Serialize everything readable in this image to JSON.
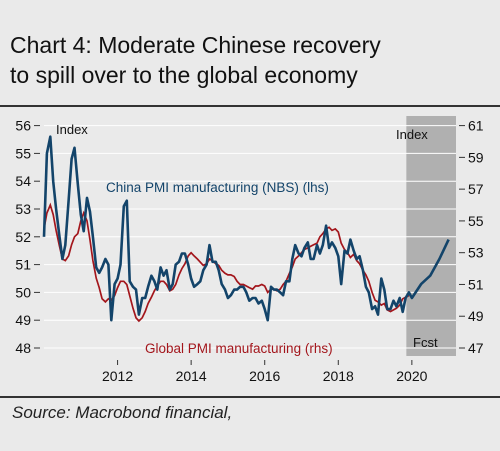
{
  "title_line1": "Chart 4: Moderate Chinese recovery",
  "title_line2": "to spill over to the global economy",
  "source": "Source: Macrobond financial,",
  "chart_data": {
    "type": "line",
    "left_unit_label": "Index",
    "right_unit_label": "Index",
    "forecast_label": "Fcst",
    "forecast_start": 2019.85,
    "left_axis": {
      "ticks": [
        48,
        49,
        50,
        51,
        52,
        53,
        54,
        55,
        56
      ],
      "range": [
        48,
        56
      ]
    },
    "right_axis": {
      "ticks": [
        47,
        49,
        51,
        53,
        55,
        57,
        59,
        61
      ],
      "range": [
        47,
        61.2
      ]
    },
    "x_axis": {
      "ticks": [
        2012,
        2014,
        2016,
        2018,
        2020
      ],
      "range": [
        2010.0,
        2021.2
      ]
    },
    "colors": {
      "china": "#13446a",
      "global": "#a3161c",
      "forecast_band": "#b0b0b0",
      "grid": "#ffffff"
    },
    "series": [
      {
        "name": "China PMI manufacturing (NBS) (lhs)",
        "axis": "left",
        "x": [
          2010.0,
          2010.08,
          2010.17,
          2010.25,
          2010.33,
          2010.42,
          2010.5,
          2010.58,
          2010.67,
          2010.75,
          2010.83,
          2010.92,
          2011.0,
          2011.08,
          2011.17,
          2011.25,
          2011.33,
          2011.42,
          2011.5,
          2011.58,
          2011.67,
          2011.75,
          2011.83,
          2011.92,
          2012.0,
          2012.08,
          2012.17,
          2012.25,
          2012.33,
          2012.42,
          2012.5,
          2012.58,
          2012.67,
          2012.75,
          2012.83,
          2012.92,
          2013.0,
          2013.08,
          2013.17,
          2013.25,
          2013.33,
          2013.42,
          2013.5,
          2013.58,
          2013.67,
          2013.75,
          2013.83,
          2013.92,
          2014.0,
          2014.08,
          2014.17,
          2014.25,
          2014.33,
          2014.42,
          2014.5,
          2014.58,
          2014.67,
          2014.75,
          2014.83,
          2014.92,
          2015.0,
          2015.08,
          2015.17,
          2015.25,
          2015.33,
          2015.42,
          2015.5,
          2015.58,
          2015.67,
          2015.75,
          2015.83,
          2015.92,
          2016.0,
          2016.08,
          2016.17,
          2016.25,
          2016.33,
          2016.42,
          2016.5,
          2016.58,
          2016.67,
          2016.75,
          2016.83,
          2016.92,
          2017.0,
          2017.08,
          2017.17,
          2017.25,
          2017.33,
          2017.42,
          2017.5,
          2017.58,
          2017.67,
          2017.75,
          2017.83,
          2017.92,
          2018.0,
          2018.08,
          2018.17,
          2018.25,
          2018.33,
          2018.42,
          2018.5,
          2018.58,
          2018.67,
          2018.75,
          2018.83,
          2018.92,
          2019.0,
          2019.08,
          2019.17,
          2019.25,
          2019.33,
          2019.42,
          2019.5,
          2019.58,
          2019.67,
          2019.75,
          2019.83,
          2019.92,
          2020.0,
          2020.25,
          2020.5,
          2020.75,
          2021.0
        ],
        "values": [
          52.0,
          55.0,
          55.6,
          54.0,
          53.0,
          52.0,
          51.2,
          51.7,
          53.3,
          54.8,
          55.2,
          53.9,
          52.8,
          52.2,
          53.4,
          52.9,
          52.0,
          50.9,
          50.7,
          50.9,
          51.2,
          51.0,
          49.0,
          50.3,
          50.5,
          51.0,
          53.1,
          53.3,
          50.4,
          50.2,
          50.1,
          49.2,
          49.8,
          49.8,
          50.2,
          50.6,
          50.4,
          50.1,
          50.9,
          50.6,
          50.8,
          50.1,
          50.3,
          51.0,
          51.1,
          51.4,
          51.4,
          51.0,
          50.5,
          50.2,
          50.3,
          50.4,
          50.8,
          51.0,
          51.7,
          51.1,
          51.1,
          50.8,
          50.3,
          50.1,
          49.8,
          49.9,
          50.1,
          50.1,
          50.2,
          50.2,
          50.0,
          49.7,
          49.8,
          49.8,
          49.6,
          49.7,
          49.4,
          49.0,
          50.2,
          50.1,
          50.1,
          50.0,
          49.9,
          50.4,
          50.4,
          51.2,
          51.7,
          51.4,
          51.3,
          51.6,
          51.8,
          51.2,
          51.2,
          51.7,
          51.4,
          51.7,
          52.4,
          51.6,
          51.8,
          51.6,
          51.3,
          50.3,
          51.5,
          51.4,
          51.9,
          51.5,
          51.2,
          51.3,
          50.8,
          50.2,
          50.0,
          49.4,
          49.5,
          49.2,
          50.5,
          50.1,
          49.4,
          49.4,
          49.7,
          49.5,
          49.8,
          49.3,
          49.8,
          50.0,
          49.8,
          50.3,
          50.6,
          51.2,
          51.9
        ]
      },
      {
        "name": "Global PMI manufacturing (rhs)",
        "axis": "right",
        "x": [
          2010.0,
          2010.08,
          2010.17,
          2010.25,
          2010.33,
          2010.42,
          2010.5,
          2010.58,
          2010.67,
          2010.75,
          2010.83,
          2010.92,
          2011.0,
          2011.08,
          2011.17,
          2011.25,
          2011.33,
          2011.42,
          2011.5,
          2011.58,
          2011.67,
          2011.75,
          2011.83,
          2011.92,
          2012.0,
          2012.08,
          2012.17,
          2012.25,
          2012.33,
          2012.42,
          2012.5,
          2012.58,
          2012.67,
          2012.75,
          2012.83,
          2012.92,
          2013.0,
          2013.08,
          2013.17,
          2013.25,
          2013.33,
          2013.42,
          2013.5,
          2013.58,
          2013.67,
          2013.75,
          2013.83,
          2013.92,
          2014.0,
          2014.08,
          2014.17,
          2014.25,
          2014.33,
          2014.42,
          2014.5,
          2014.58,
          2014.67,
          2014.75,
          2014.83,
          2014.92,
          2015.0,
          2015.08,
          2015.17,
          2015.25,
          2015.33,
          2015.42,
          2015.5,
          2015.58,
          2015.67,
          2015.75,
          2015.83,
          2015.92,
          2016.0,
          2016.08,
          2016.17,
          2016.25,
          2016.33,
          2016.42,
          2016.5,
          2016.58,
          2016.67,
          2016.75,
          2016.83,
          2016.92,
          2017.0,
          2017.08,
          2017.17,
          2017.25,
          2017.33,
          2017.42,
          2017.5,
          2017.58,
          2017.67,
          2017.75,
          2017.83,
          2017.92,
          2018.0,
          2018.08,
          2018.17,
          2018.25,
          2018.33,
          2018.42,
          2018.5,
          2018.58,
          2018.67,
          2018.75,
          2018.83,
          2018.92,
          2019.0,
          2019.08,
          2019.17,
          2019.25,
          2019.33,
          2019.42,
          2019.5,
          2019.58,
          2019.67,
          2019.75,
          2019.83,
          2019.92
        ],
        "values": [
          54.5,
          55.5,
          56.0,
          55.4,
          54.4,
          53.4,
          52.6,
          52.5,
          52.8,
          53.5,
          54.0,
          54.2,
          55.0,
          55.5,
          55.0,
          53.8,
          52.5,
          51.4,
          50.8,
          50.1,
          49.9,
          50.1,
          50.0,
          50.3,
          50.8,
          51.2,
          51.2,
          51.0,
          50.3,
          49.5,
          48.9,
          48.7,
          48.9,
          49.3,
          49.8,
          50.2,
          50.6,
          50.9,
          51.2,
          51.2,
          51.0,
          50.6,
          50.7,
          51.0,
          51.6,
          52.0,
          52.3,
          52.8,
          53.0,
          52.8,
          52.6,
          52.4,
          52.2,
          52.3,
          52.6,
          52.5,
          52.3,
          52.2,
          51.9,
          51.7,
          51.6,
          51.6,
          51.5,
          51.2,
          51.0,
          51.0,
          50.9,
          50.8,
          50.7,
          50.9,
          50.9,
          51.0,
          50.9,
          50.5,
          50.7,
          50.7,
          50.6,
          50.7,
          51.0,
          51.2,
          51.7,
          52.1,
          52.6,
          52.8,
          53.0,
          53.2,
          53.3,
          53.4,
          53.5,
          53.6,
          54.0,
          54.2,
          54.5,
          54.6,
          54.4,
          54.5,
          54.3,
          53.6,
          53.2,
          53.0,
          52.7,
          52.9,
          52.5,
          52.3,
          51.9,
          51.6,
          51.2,
          50.5,
          50.0,
          49.9,
          49.7,
          49.8,
          49.4,
          49.3,
          49.4,
          49.5,
          49.7,
          50.1,
          50.2,
          50.3
        ]
      }
    ],
    "annotations": [
      {
        "text": "China PMI manufacturing (NBS) (lhs)",
        "color": "#13446a"
      },
      {
        "text": "Global PMI manufacturing (rhs)",
        "color": "#a3161c"
      }
    ]
  }
}
